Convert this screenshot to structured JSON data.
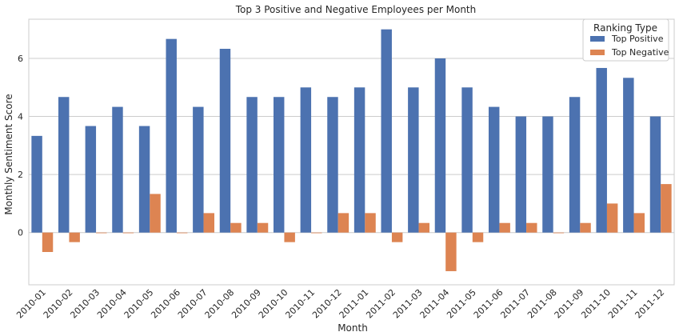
{
  "chart_data": {
    "type": "bar",
    "title": "Top 3 Positive and Negative Employees per Month",
    "xlabel": "Month",
    "ylabel": "Monthly Sentiment Score",
    "categories": [
      "2010-01",
      "2010-02",
      "2010-03",
      "2010-04",
      "2010-05",
      "2010-06",
      "2010-07",
      "2010-08",
      "2010-09",
      "2010-10",
      "2010-11",
      "2010-12",
      "2011-01",
      "2011-02",
      "2011-03",
      "2011-04",
      "2011-05",
      "2011-06",
      "2011-07",
      "2011-08",
      "2011-09",
      "2011-10",
      "2011-11",
      "2011-12"
    ],
    "series": [
      {
        "name": "Top Positive",
        "color": "#4c72b0",
        "values": [
          3.33,
          4.67,
          3.67,
          4.33,
          3.67,
          6.67,
          4.33,
          6.33,
          4.67,
          4.67,
          5.0,
          4.67,
          5.0,
          7.0,
          5.0,
          6.0,
          5.0,
          4.33,
          4.0,
          4.0,
          4.67,
          5.67,
          5.33,
          4.0
        ]
      },
      {
        "name": "Top Negative",
        "color": "#dd8452",
        "values": [
          -0.67,
          -0.33,
          0.0,
          0.0,
          1.33,
          0.0,
          0.67,
          0.33,
          0.33,
          -0.33,
          0.0,
          0.67,
          0.67,
          -0.33,
          0.33,
          -1.33,
          -0.33,
          0.33,
          0.33,
          0.0,
          0.33,
          1.0,
          0.67,
          1.67
        ]
      }
    ],
    "yticks": [
      0,
      2,
      4,
      6
    ],
    "ylim": [
      -1.8,
      7.35
    ],
    "legend": {
      "title": "Ranking Type",
      "position": "top-right"
    },
    "grid": true
  }
}
